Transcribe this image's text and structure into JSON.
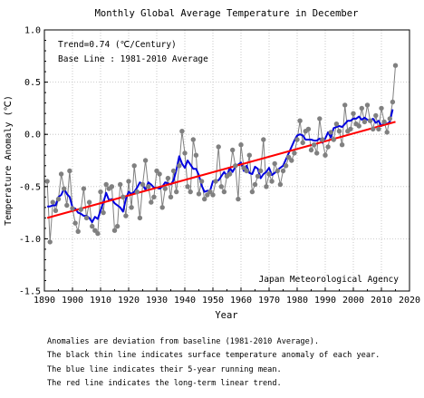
{
  "chart_data": {
    "type": "line",
    "title": "Monthly Global Average Temperature in December",
    "xlabel": "Year",
    "ylabel": "Temperature Anomaly (℃)",
    "xlim": [
      1890,
      2020
    ],
    "ylim": [
      -1.5,
      1.0
    ],
    "x_ticks": [
      "1890",
      "1900",
      "1910",
      "1920",
      "1930",
      "1940",
      "1950",
      "1960",
      "1970",
      "1980",
      "1990",
      "2000",
      "2010",
      "2020"
    ],
    "y_ticks": [
      "1.0",
      "0.5",
      "0.0",
      "-0.5",
      "-1.0",
      "-1.5"
    ],
    "grid": true,
    "annotations": {
      "trend": "Trend=0.74 (℃/Century)",
      "baseline": "Base Line : 1981-2010 Average",
      "source": "Japan Meteorological Agency"
    },
    "x": [
      1891,
      1892,
      1893,
      1894,
      1895,
      1896,
      1897,
      1898,
      1899,
      1900,
      1901,
      1902,
      1903,
      1904,
      1905,
      1906,
      1907,
      1908,
      1909,
      1910,
      1911,
      1912,
      1913,
      1914,
      1915,
      1916,
      1917,
      1918,
      1919,
      1920,
      1921,
      1922,
      1923,
      1924,
      1925,
      1926,
      1927,
      1928,
      1929,
      1930,
      1931,
      1932,
      1933,
      1934,
      1935,
      1936,
      1937,
      1938,
      1939,
      1940,
      1941,
      1942,
      1943,
      1944,
      1945,
      1946,
      1947,
      1948,
      1949,
      1950,
      1951,
      1952,
      1953,
      1954,
      1955,
      1956,
      1957,
      1958,
      1959,
      1960,
      1961,
      1962,
      1963,
      1964,
      1965,
      1966,
      1967,
      1968,
      1969,
      1970,
      1971,
      1972,
      1973,
      1974,
      1975,
      1976,
      1977,
      1978,
      1979,
      1980,
      1981,
      1982,
      1983,
      1984,
      1985,
      1986,
      1987,
      1988,
      1989,
      1990,
      1991,
      1992,
      1993,
      1994,
      1995,
      1996,
      1997,
      1998,
      1999,
      2000,
      2001,
      2002,
      2003,
      2004,
      2005,
      2006,
      2007,
      2008,
      2009,
      2010,
      2011,
      2012,
      2013,
      2014,
      2015
    ],
    "series": [
      {
        "role": "Annual value",
        "color": "#808080",
        "values": [
          -0.45,
          -1.03,
          -0.65,
          -0.73,
          -0.62,
          -0.38,
          -0.52,
          -0.68,
          -0.35,
          -0.71,
          -0.85,
          -0.93,
          -0.72,
          -0.52,
          -0.8,
          -0.65,
          -0.88,
          -0.92,
          -0.95,
          -0.55,
          -0.75,
          -0.48,
          -0.52,
          -0.5,
          -0.92,
          -0.88,
          -0.48,
          -0.6,
          -0.78,
          -0.45,
          -0.7,
          -0.3,
          -0.55,
          -0.8,
          -0.48,
          -0.25,
          -0.5,
          -0.65,
          -0.6,
          -0.35,
          -0.38,
          -0.7,
          -0.52,
          -0.42,
          -0.6,
          -0.35,
          -0.55,
          -0.3,
          0.03,
          -0.18,
          -0.5,
          -0.55,
          -0.05,
          -0.2,
          -0.57,
          -0.45,
          -0.62,
          -0.58,
          -0.55,
          -0.58,
          -0.45,
          -0.12,
          -0.5,
          -0.55,
          -0.4,
          -0.38,
          -0.15,
          -0.3,
          -0.62,
          -0.1,
          -0.32,
          -0.35,
          -0.2,
          -0.55,
          -0.48,
          -0.4,
          -0.35,
          -0.05,
          -0.5,
          -0.38,
          -0.45,
          -0.28,
          -0.35,
          -0.48,
          -0.35,
          -0.3,
          -0.22,
          -0.25,
          -0.18,
          -0.05,
          0.13,
          -0.08,
          0.03,
          0.05,
          -0.15,
          -0.1,
          -0.18,
          0.15,
          -0.05,
          -0.2,
          -0.12,
          0.02,
          -0.05,
          0.1,
          0.03,
          -0.1,
          0.28,
          0.03,
          0.05,
          0.2,
          0.1,
          0.08,
          0.25,
          0.12,
          0.28,
          0.13,
          0.05,
          0.18,
          0.05,
          0.25,
          0.12,
          0.02,
          0.15,
          0.31,
          0.66
        ]
      },
      {
        "role": "5-year running mean",
        "color": "#0000e0",
        "values": [
          -0.69,
          -0.69,
          -0.68,
          -0.68,
          -0.6,
          -0.58,
          -0.52,
          -0.57,
          -0.6,
          -0.7,
          -0.71,
          -0.75,
          -0.76,
          -0.78,
          -0.78,
          -0.8,
          -0.84,
          -0.79,
          -0.81,
          -0.73,
          -0.65,
          -0.56,
          -0.63,
          -0.62,
          -0.66,
          -0.68,
          -0.7,
          -0.74,
          -0.62,
          -0.55,
          -0.57,
          -0.55,
          -0.51,
          -0.46,
          -0.48,
          -0.53,
          -0.46,
          -0.48,
          -0.51,
          -0.51,
          -0.52,
          -0.5,
          -0.46,
          -0.47,
          -0.48,
          -0.44,
          -0.34,
          -0.21,
          -0.28,
          -0.32,
          -0.25,
          -0.29,
          -0.33,
          -0.33,
          -0.39,
          -0.49,
          -0.55,
          -0.54,
          -0.54,
          -0.45,
          -0.44,
          -0.44,
          -0.4,
          -0.36,
          -0.4,
          -0.32,
          -0.36,
          -0.31,
          -0.29,
          -0.27,
          -0.35,
          -0.3,
          -0.37,
          -0.38,
          -0.31,
          -0.33,
          -0.42,
          -0.38,
          -0.36,
          -0.32,
          -0.39,
          -0.37,
          -0.34,
          -0.32,
          -0.3,
          -0.24,
          -0.18,
          -0.12,
          -0.06,
          -0.01,
          0.0,
          -0.01,
          -0.05,
          -0.05,
          -0.05,
          -0.06,
          -0.06,
          -0.04,
          -0.08,
          -0.04,
          0.02,
          -0.03,
          0.06,
          0.07,
          0.08,
          0.07,
          0.1,
          0.13,
          0.13,
          0.15,
          0.15,
          0.17,
          0.14,
          0.16,
          0.14,
          0.13,
          0.15,
          0.11,
          0.13,
          0.08,
          0.11,
          0.1,
          0.12,
          0.24,
          null
        ]
      },
      {
        "role": "Long-term linear trend",
        "color": "#ff0000",
        "x": [
          1891,
          2015
        ],
        "values": [
          -0.8,
          0.12
        ]
      }
    ]
  },
  "notes": {
    "line1": "Anomalies are deviation from baseline (1981-2010 Average).",
    "line2": "The black thin line indicates surface temperature anomaly of each year.",
    "line3": "The blue line indicates their 5-year running mean.",
    "line4": "The red line indicates the long-term linear trend."
  }
}
